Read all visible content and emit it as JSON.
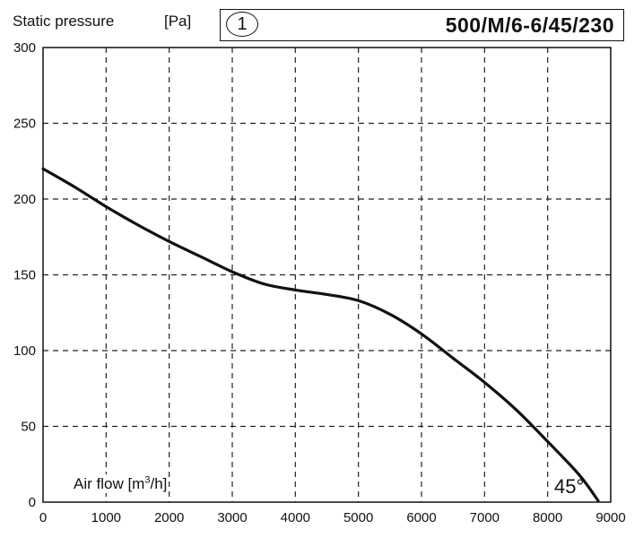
{
  "header": {
    "ylabel": "Static pressure",
    "unit": "[Pa]",
    "curve_number": "1",
    "model": "500/M/6-6/45/230"
  },
  "annotations": {
    "xlabel": "Air flow  [m3/h]",
    "blade_angle": "45°"
  },
  "chart_data": {
    "type": "line",
    "title": "",
    "xlabel": "Air flow [m3/h]",
    "ylabel": "Static pressure [Pa]",
    "xlim": [
      0,
      9000
    ],
    "ylim": [
      0,
      300
    ],
    "xticks": [
      0,
      1000,
      2000,
      3000,
      4000,
      5000,
      6000,
      7000,
      8000,
      9000
    ],
    "yticks": [
      0,
      50,
      100,
      150,
      200,
      250,
      300
    ],
    "grid": "dashed",
    "series": [
      {
        "name": "",
        "color": "#111111",
        "x": [
          0,
          500,
          1000,
          1500,
          2000,
          2500,
          3000,
          3500,
          4000,
          4500,
          5000,
          5500,
          6000,
          6500,
          7000,
          7500,
          8000,
          8500,
          8800
        ],
        "y": [
          220,
          208,
          195,
          183,
          172,
          162,
          152,
          144,
          140,
          137,
          133,
          124,
          111,
          95,
          79,
          61,
          40,
          18,
          1
        ]
      }
    ]
  }
}
